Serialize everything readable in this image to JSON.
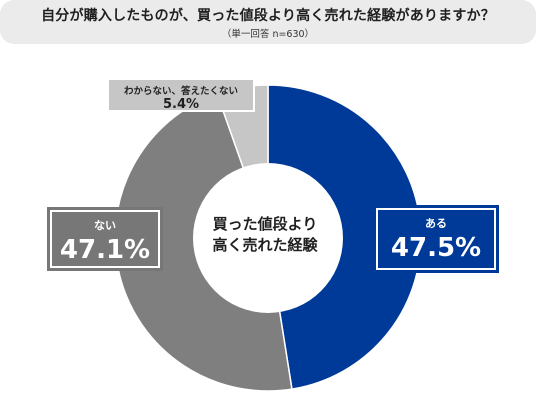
{
  "title": "自分が購入したものが、買った値段より高く売れた経験がありますか？",
  "subtitle": "（単一回答 n=630）",
  "center_label": [
    "買った値段より",
    "高く売れた経験"
  ],
  "chart_data": {
    "type": "pie",
    "title": "自分が購入したものが、買った値段より高く売れた経験がありますか？",
    "subtitle": "（単一回答 n=630）",
    "categories": [
      "ある",
      "ない",
      "わからない、答えたくない"
    ],
    "values": [
      47.5,
      47.1,
      5.4
    ],
    "value_labels": [
      "47.5%",
      "47.1%",
      "5.4%"
    ],
    "colors": [
      "#003a99",
      "#7f7f7f",
      "#c6c6c6"
    ],
    "donut": true
  }
}
